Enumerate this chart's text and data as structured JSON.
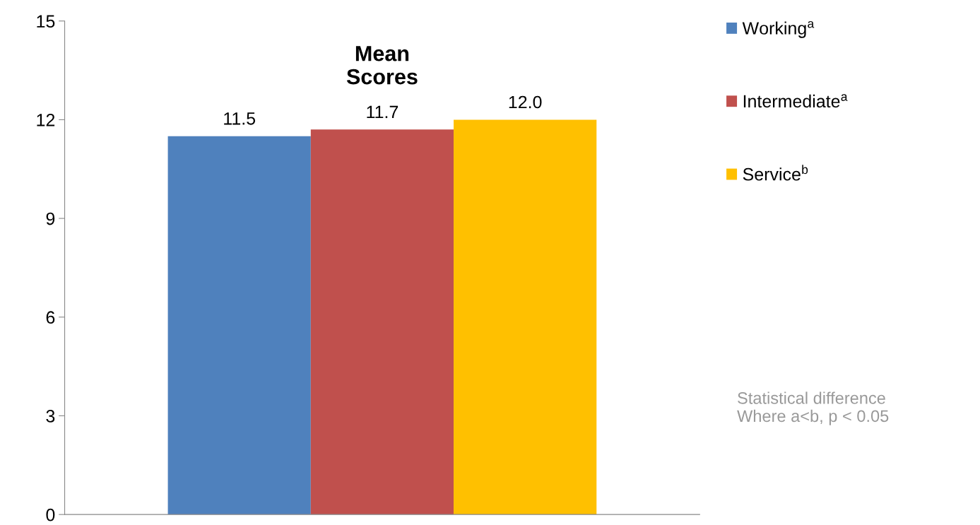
{
  "chart_data": {
    "type": "bar",
    "title": "Mean\nScores",
    "categories": [
      null
    ],
    "series": [
      {
        "name": "Working$^{a}$",
        "color": "#4f81bd",
        "values": [
          11.5
        ],
        "value_labels": [
          "11.5"
        ]
      },
      {
        "name": "Intermediate$^{a}$",
        "color": "#c0504d",
        "values": [
          11.7
        ],
        "value_labels": [
          "11.7"
        ]
      },
      {
        "name": "Service$^{b}$",
        "color": "#ffc000",
        "values": [
          12.0
        ],
        "value_labels": [
          "12.0"
        ]
      }
    ],
    "ylim": [
      0,
      15
    ],
    "yticks": [
      0,
      3,
      6,
      9,
      12,
      15
    ],
    "grid": false,
    "legend": "right",
    "annotations": [
      "Statistical difference\nWhere a<b, p < 0.05"
    ]
  }
}
